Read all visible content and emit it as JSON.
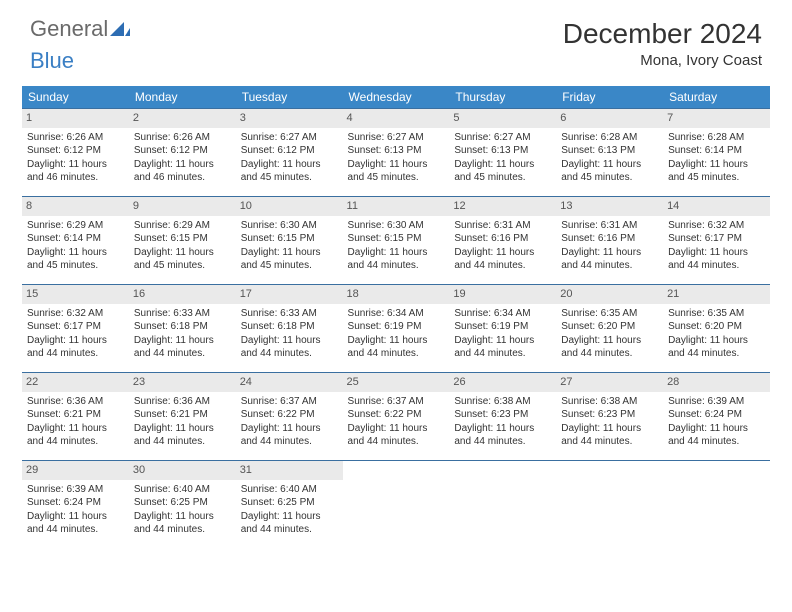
{
  "logo": {
    "text1": "General",
    "text2": "Blue"
  },
  "title": "December 2024",
  "location": "Mona, Ivory Coast",
  "styling": {
    "header_bg": "#3a87c7",
    "header_fg": "#ffffff",
    "daynum_bg": "#eaeaea",
    "row_border": "#3a6fa0",
    "page_bg": "#ffffff",
    "text_color": "#333333",
    "body_fontsize": 10,
    "header_fontsize": 12,
    "title_fontsize": 28
  },
  "weekdays": [
    "Sunday",
    "Monday",
    "Tuesday",
    "Wednesday",
    "Thursday",
    "Friday",
    "Saturday"
  ],
  "weeks": [
    [
      {
        "n": "1",
        "sr": "Sunrise: 6:26 AM",
        "ss": "Sunset: 6:12 PM",
        "d1": "Daylight: 11 hours",
        "d2": "and 46 minutes."
      },
      {
        "n": "2",
        "sr": "Sunrise: 6:26 AM",
        "ss": "Sunset: 6:12 PM",
        "d1": "Daylight: 11 hours",
        "d2": "and 46 minutes."
      },
      {
        "n": "3",
        "sr": "Sunrise: 6:27 AM",
        "ss": "Sunset: 6:12 PM",
        "d1": "Daylight: 11 hours",
        "d2": "and 45 minutes."
      },
      {
        "n": "4",
        "sr": "Sunrise: 6:27 AM",
        "ss": "Sunset: 6:13 PM",
        "d1": "Daylight: 11 hours",
        "d2": "and 45 minutes."
      },
      {
        "n": "5",
        "sr": "Sunrise: 6:27 AM",
        "ss": "Sunset: 6:13 PM",
        "d1": "Daylight: 11 hours",
        "d2": "and 45 minutes."
      },
      {
        "n": "6",
        "sr": "Sunrise: 6:28 AM",
        "ss": "Sunset: 6:13 PM",
        "d1": "Daylight: 11 hours",
        "d2": "and 45 minutes."
      },
      {
        "n": "7",
        "sr": "Sunrise: 6:28 AM",
        "ss": "Sunset: 6:14 PM",
        "d1": "Daylight: 11 hours",
        "d2": "and 45 minutes."
      }
    ],
    [
      {
        "n": "8",
        "sr": "Sunrise: 6:29 AM",
        "ss": "Sunset: 6:14 PM",
        "d1": "Daylight: 11 hours",
        "d2": "and 45 minutes."
      },
      {
        "n": "9",
        "sr": "Sunrise: 6:29 AM",
        "ss": "Sunset: 6:15 PM",
        "d1": "Daylight: 11 hours",
        "d2": "and 45 minutes."
      },
      {
        "n": "10",
        "sr": "Sunrise: 6:30 AM",
        "ss": "Sunset: 6:15 PM",
        "d1": "Daylight: 11 hours",
        "d2": "and 45 minutes."
      },
      {
        "n": "11",
        "sr": "Sunrise: 6:30 AM",
        "ss": "Sunset: 6:15 PM",
        "d1": "Daylight: 11 hours",
        "d2": "and 44 minutes."
      },
      {
        "n": "12",
        "sr": "Sunrise: 6:31 AM",
        "ss": "Sunset: 6:16 PM",
        "d1": "Daylight: 11 hours",
        "d2": "and 44 minutes."
      },
      {
        "n": "13",
        "sr": "Sunrise: 6:31 AM",
        "ss": "Sunset: 6:16 PM",
        "d1": "Daylight: 11 hours",
        "d2": "and 44 minutes."
      },
      {
        "n": "14",
        "sr": "Sunrise: 6:32 AM",
        "ss": "Sunset: 6:17 PM",
        "d1": "Daylight: 11 hours",
        "d2": "and 44 minutes."
      }
    ],
    [
      {
        "n": "15",
        "sr": "Sunrise: 6:32 AM",
        "ss": "Sunset: 6:17 PM",
        "d1": "Daylight: 11 hours",
        "d2": "and 44 minutes."
      },
      {
        "n": "16",
        "sr": "Sunrise: 6:33 AM",
        "ss": "Sunset: 6:18 PM",
        "d1": "Daylight: 11 hours",
        "d2": "and 44 minutes."
      },
      {
        "n": "17",
        "sr": "Sunrise: 6:33 AM",
        "ss": "Sunset: 6:18 PM",
        "d1": "Daylight: 11 hours",
        "d2": "and 44 minutes."
      },
      {
        "n": "18",
        "sr": "Sunrise: 6:34 AM",
        "ss": "Sunset: 6:19 PM",
        "d1": "Daylight: 11 hours",
        "d2": "and 44 minutes."
      },
      {
        "n": "19",
        "sr": "Sunrise: 6:34 AM",
        "ss": "Sunset: 6:19 PM",
        "d1": "Daylight: 11 hours",
        "d2": "and 44 minutes."
      },
      {
        "n": "20",
        "sr": "Sunrise: 6:35 AM",
        "ss": "Sunset: 6:20 PM",
        "d1": "Daylight: 11 hours",
        "d2": "and 44 minutes."
      },
      {
        "n": "21",
        "sr": "Sunrise: 6:35 AM",
        "ss": "Sunset: 6:20 PM",
        "d1": "Daylight: 11 hours",
        "d2": "and 44 minutes."
      }
    ],
    [
      {
        "n": "22",
        "sr": "Sunrise: 6:36 AM",
        "ss": "Sunset: 6:21 PM",
        "d1": "Daylight: 11 hours",
        "d2": "and 44 minutes."
      },
      {
        "n": "23",
        "sr": "Sunrise: 6:36 AM",
        "ss": "Sunset: 6:21 PM",
        "d1": "Daylight: 11 hours",
        "d2": "and 44 minutes."
      },
      {
        "n": "24",
        "sr": "Sunrise: 6:37 AM",
        "ss": "Sunset: 6:22 PM",
        "d1": "Daylight: 11 hours",
        "d2": "and 44 minutes."
      },
      {
        "n": "25",
        "sr": "Sunrise: 6:37 AM",
        "ss": "Sunset: 6:22 PM",
        "d1": "Daylight: 11 hours",
        "d2": "and 44 minutes."
      },
      {
        "n": "26",
        "sr": "Sunrise: 6:38 AM",
        "ss": "Sunset: 6:23 PM",
        "d1": "Daylight: 11 hours",
        "d2": "and 44 minutes."
      },
      {
        "n": "27",
        "sr": "Sunrise: 6:38 AM",
        "ss": "Sunset: 6:23 PM",
        "d1": "Daylight: 11 hours",
        "d2": "and 44 minutes."
      },
      {
        "n": "28",
        "sr": "Sunrise: 6:39 AM",
        "ss": "Sunset: 6:24 PM",
        "d1": "Daylight: 11 hours",
        "d2": "and 44 minutes."
      }
    ],
    [
      {
        "n": "29",
        "sr": "Sunrise: 6:39 AM",
        "ss": "Sunset: 6:24 PM",
        "d1": "Daylight: 11 hours",
        "d2": "and 44 minutes."
      },
      {
        "n": "30",
        "sr": "Sunrise: 6:40 AM",
        "ss": "Sunset: 6:25 PM",
        "d1": "Daylight: 11 hours",
        "d2": "and 44 minutes."
      },
      {
        "n": "31",
        "sr": "Sunrise: 6:40 AM",
        "ss": "Sunset: 6:25 PM",
        "d1": "Daylight: 11 hours",
        "d2": "and 44 minutes."
      },
      {
        "empty": true
      },
      {
        "empty": true
      },
      {
        "empty": true
      },
      {
        "empty": true
      }
    ]
  ]
}
